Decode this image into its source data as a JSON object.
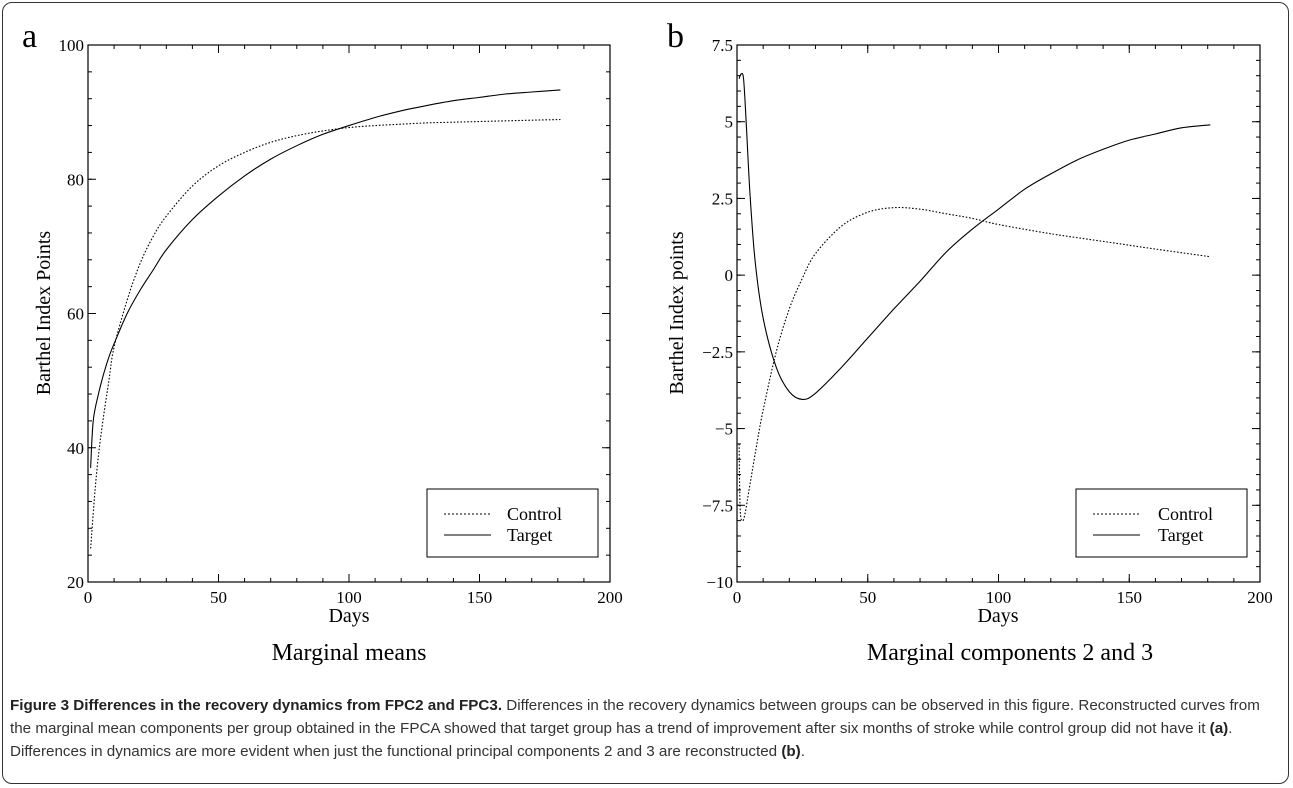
{
  "panels": [
    {
      "letter": "a",
      "subtitle": "Marginal means",
      "xlabel": "Days",
      "ylabel": "Barthel Index Points",
      "legend": [
        "Control",
        "Target"
      ]
    },
    {
      "letter": "b",
      "subtitle": "Marginal components 2 and 3",
      "xlabel": "Days",
      "ylabel": "Barthel Index points",
      "legend": [
        "Control",
        "Target"
      ]
    }
  ],
  "caption": {
    "title": "Figure 3 Differences in the recovery dynamics from FPC2 and FPC3.",
    "text_1": " Differences in the recovery dynamics between groups can be observed in this figure. Reconstructed curves from the marginal mean components per group obtained in the FPCA showed that target group has a trend of improvement after six months of stroke while control group did not have it ",
    "ref_a": "(a)",
    "text_2": ". Differences in dynamics are more evident when just the functional principal components 2 and 3 are reconstructed ",
    "ref_b": "(b)",
    "text_3": "."
  },
  "chart_data": [
    {
      "type": "line",
      "title": "Marginal means",
      "xlabel": "Days",
      "ylabel": "Barthel Index Points",
      "xlim": [
        0,
        200
      ],
      "ylim": [
        20,
        100
      ],
      "xticks": [
        0,
        50,
        100,
        150,
        200
      ],
      "yticks": [
        20,
        40,
        60,
        80,
        100
      ],
      "legend_position": "bottom-right",
      "series": [
        {
          "name": "Control",
          "style": "dotted",
          "x": [
            1,
            3,
            5,
            8,
            10,
            15,
            20,
            25,
            30,
            40,
            50,
            60,
            70,
            80,
            90,
            100,
            110,
            120,
            130,
            140,
            150,
            160,
            170,
            181
          ],
          "y": [
            25,
            35,
            42,
            50,
            55,
            62,
            67.5,
            71.5,
            74.5,
            79,
            82,
            84,
            85.5,
            86.5,
            87.2,
            87.7,
            88,
            88.2,
            88.4,
            88.5,
            88.6,
            88.7,
            88.8,
            88.9
          ]
        },
        {
          "name": "Target",
          "style": "solid",
          "x": [
            1,
            2,
            4,
            6,
            8,
            10,
            15,
            20,
            25,
            30,
            40,
            50,
            60,
            70,
            80,
            90,
            100,
            110,
            120,
            130,
            140,
            150,
            160,
            170,
            181
          ],
          "y": [
            37,
            44,
            48,
            51,
            53.5,
            55.5,
            60,
            63.5,
            66.5,
            69.5,
            74,
            77.5,
            80.5,
            83,
            85,
            86.7,
            88,
            89.2,
            90.2,
            91,
            91.7,
            92.2,
            92.7,
            93,
            93.3
          ]
        }
      ]
    },
    {
      "type": "line",
      "title": "Marginal components 2 and 3",
      "xlabel": "Days",
      "ylabel": "Barthel Index points",
      "xlim": [
        0,
        200
      ],
      "ylim": [
        -10,
        7.5
      ],
      "xticks": [
        0,
        50,
        100,
        150,
        200
      ],
      "yticks": [
        -10,
        -7.5,
        -5,
        -2.5,
        0,
        2.5,
        5,
        7.5
      ],
      "legend_position": "bottom-right",
      "series": [
        {
          "name": "Control",
          "style": "dotted",
          "x": [
            0.8,
            1.2,
            2,
            3,
            5,
            8,
            10,
            15,
            20,
            25,
            30,
            40,
            50,
            60,
            70,
            80,
            90,
            100,
            120,
            140,
            160,
            181
          ],
          "y": [
            -5.5,
            -7.6,
            -8.0,
            -7.8,
            -6.8,
            -5.3,
            -4.4,
            -2.5,
            -1.1,
            -0.1,
            0.7,
            1.6,
            2.05,
            2.2,
            2.15,
            2.0,
            1.85,
            1.65,
            1.35,
            1.1,
            0.85,
            0.6
          ]
        },
        {
          "name": "Target",
          "style": "solid",
          "x": [
            0.8,
            1.5,
            2.5,
            3.5,
            5,
            7,
            10,
            15,
            20,
            25,
            30,
            40,
            50,
            60,
            70,
            80,
            90,
            100,
            110,
            120,
            130,
            140,
            150,
            160,
            170,
            181
          ],
          "y": [
            6.4,
            6.55,
            6.4,
            5.0,
            2.6,
            0.4,
            -1.4,
            -3.0,
            -3.8,
            -4.05,
            -3.85,
            -3.0,
            -2.05,
            -1.1,
            -0.2,
            0.75,
            1.5,
            2.15,
            2.8,
            3.3,
            3.75,
            4.1,
            4.4,
            4.6,
            4.8,
            4.9
          ]
        }
      ]
    }
  ]
}
